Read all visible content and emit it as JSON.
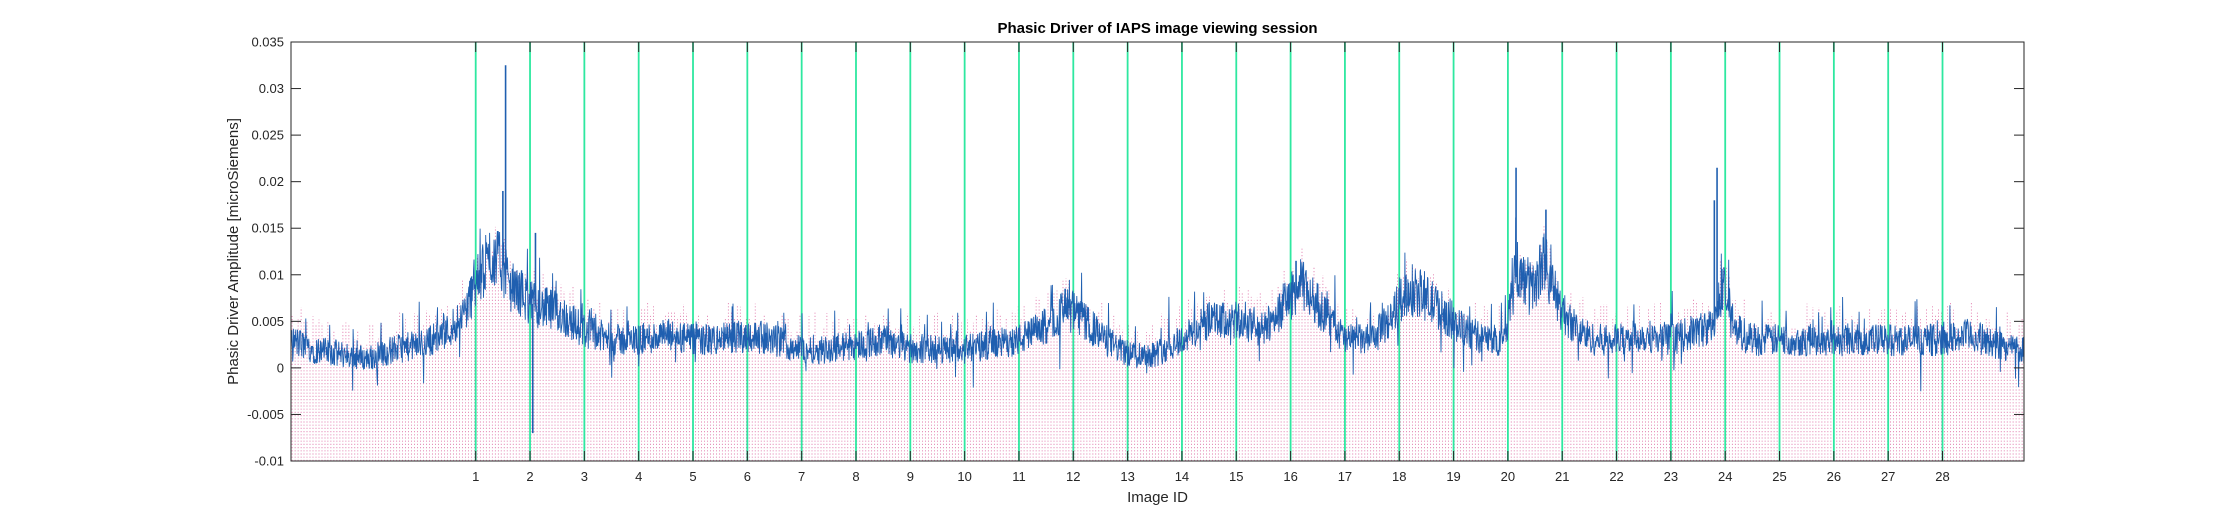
{
  "chart_data": {
    "type": "line",
    "title": "Phasic Driver of IAPS image viewing session",
    "xlabel": "Image ID",
    "ylabel": "Phasic Driver Amplitude [microSiemens]",
    "ylim": [
      -0.01,
      0.035
    ],
    "xlim": [
      -2.4,
      29.5
    ],
    "yticks": [
      -0.01,
      -0.005,
      0,
      0.005,
      0.01,
      0.015,
      0.02,
      0.025,
      0.03,
      0.035
    ],
    "ytick_labels": [
      "-0.01",
      "-0.005",
      "0",
      "0.005",
      "0.01",
      "0.015",
      "0.02",
      "0.025",
      "0.03",
      "0.035"
    ],
    "xticks": [
      1,
      2,
      3,
      4,
      5,
      6,
      7,
      8,
      9,
      10,
      11,
      12,
      13,
      14,
      15,
      16,
      17,
      18,
      19,
      20,
      21,
      22,
      23,
      24,
      25,
      26,
      27,
      28
    ],
    "xtick_labels": [
      "1",
      "2",
      "3",
      "4",
      "5",
      "6",
      "7",
      "8",
      "9",
      "10",
      "11",
      "12",
      "13",
      "14",
      "15",
      "16",
      "17",
      "18",
      "19",
      "20",
      "21",
      "22",
      "23",
      "24",
      "25",
      "26",
      "27",
      "28"
    ],
    "grid": false,
    "colors": {
      "signal": "#1f5fb0",
      "impulses": "#d0307f",
      "onsets": "#2ee8a0",
      "axes": "#262626"
    },
    "series": [
      {
        "kind": "line",
        "x": [
          -2.4,
          -2.0,
          -1.5,
          -1.0,
          -0.5,
          0.0,
          0.5,
          0.8,
          1.0,
          1.2,
          1.35,
          1.5,
          1.6,
          1.7,
          1.85,
          2.0,
          2.2,
          2.5,
          3.0,
          3.5,
          4.0,
          4.5,
          5.0,
          5.5,
          6.0,
          6.5,
          7.0,
          7.5,
          8.0,
          8.5,
          9.0,
          9.5,
          10.0,
          10.5,
          11.0,
          11.5,
          11.9,
          12.2,
          12.6,
          13.0,
          13.5,
          14.0,
          14.5,
          15.0,
          15.5,
          15.9,
          16.2,
          16.6,
          17.0,
          17.5,
          17.8,
          18.1,
          18.4,
          18.8,
          19.2,
          19.6,
          19.95,
          20.1,
          20.3,
          20.5,
          20.65,
          20.8,
          21.0,
          21.3,
          21.6,
          22.0,
          22.5,
          23.0,
          23.5,
          23.8,
          23.95,
          24.2,
          24.6,
          25.0,
          25.5,
          26.0,
          26.5,
          27.0,
          27.5,
          28.0,
          28.5,
          29.0,
          29.5
        ],
        "y": [
          0.003,
          0.002,
          0.0015,
          0.001,
          0.002,
          0.0025,
          0.004,
          0.006,
          0.009,
          0.011,
          0.012,
          0.011,
          0.009,
          0.0085,
          0.008,
          0.007,
          0.0065,
          0.006,
          0.004,
          0.003,
          0.003,
          0.0035,
          0.003,
          0.003,
          0.0035,
          0.003,
          0.002,
          0.002,
          0.0025,
          0.003,
          0.002,
          0.002,
          0.002,
          0.0025,
          0.003,
          0.0045,
          0.0065,
          0.005,
          0.003,
          0.0015,
          0.0015,
          0.003,
          0.005,
          0.005,
          0.004,
          0.007,
          0.009,
          0.006,
          0.003,
          0.003,
          0.005,
          0.008,
          0.008,
          0.006,
          0.004,
          0.003,
          0.003,
          0.01,
          0.0095,
          0.0085,
          0.012,
          0.009,
          0.006,
          0.004,
          0.003,
          0.003,
          0.0035,
          0.003,
          0.004,
          0.0045,
          0.009,
          0.004,
          0.003,
          0.003,
          0.003,
          0.003,
          0.003,
          0.003,
          0.003,
          0.003,
          0.0035,
          0.0025,
          0.002
        ]
      },
      {
        "kind": "stem",
        "style": "dotted",
        "note": "dense impulse train spanning the recording"
      },
      {
        "kind": "vlines",
        "x": [
          1,
          2,
          3,
          4,
          5,
          6,
          7,
          8,
          9,
          10,
          11,
          12,
          13,
          14,
          15,
          16,
          17,
          18,
          19,
          20,
          21,
          22,
          23,
          24,
          25,
          26,
          27,
          28
        ]
      }
    ],
    "peaks": [
      {
        "x": 1.55,
        "y": 0.0325
      },
      {
        "x": 1.5,
        "y": 0.019
      },
      {
        "x": 2.1,
        "y": 0.0145
      },
      {
        "x": 2.05,
        "y": -0.007
      },
      {
        "x": 20.15,
        "y": 0.0215
      },
      {
        "x": 20.7,
        "y": 0.017
      },
      {
        "x": 23.85,
        "y": 0.0215
      },
      {
        "x": 23.8,
        "y": 0.018
      },
      {
        "x": 16.1,
        "y": 0.0115
      },
      {
        "x": 11.85,
        "y": 0.0085
      }
    ]
  }
}
